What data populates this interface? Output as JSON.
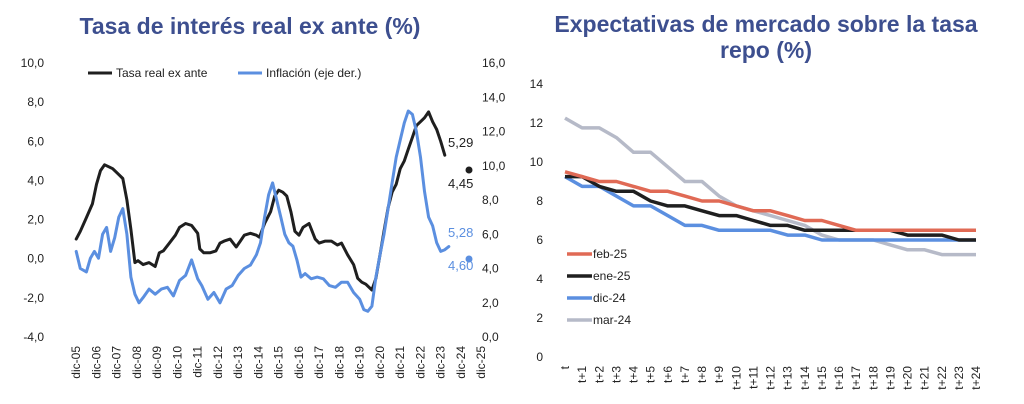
{
  "chart_data": [
    {
      "type": "line",
      "title": "Tasa de interés real ex ante (%)",
      "yticks_left": [
        "10,0",
        "8,0",
        "6,0",
        "4,0",
        "2,0",
        "0,0",
        "-2,0",
        "-4,0"
      ],
      "ylim_left": [
        -4,
        10
      ],
      "yticks_right": [
        "16,0",
        "14,0",
        "12,0",
        "10,0",
        "8,0",
        "6,0",
        "4,0",
        "2,0",
        "0,0"
      ],
      "ylim_right": [
        0,
        16
      ],
      "categories": [
        "dic-05",
        "dic-06",
        "dic-07",
        "dic-08",
        "dic-09",
        "dic-10",
        "dic-11",
        "dic-12",
        "dic-13",
        "dic-14",
        "dic-15",
        "dic-16",
        "dic-17",
        "dic-18",
        "dic-19",
        "dic-20",
        "dic-21",
        "dic-22",
        "dic-23",
        "dic-24",
        "dic-25"
      ],
      "legend_position": "top",
      "series": [
        {
          "name": "Tasa real ex ante",
          "axis": "left",
          "color": "#1f1f1f",
          "x": [
            2005.9,
            2006.1,
            2006.4,
            2006.7,
            2006.9,
            2007.1,
            2007.3,
            2007.5,
            2007.7,
            2008.0,
            2008.2,
            2008.4,
            2008.6,
            2008.8,
            2008.95,
            2009.2,
            2009.5,
            2009.8,
            2010.0,
            2010.2,
            2010.5,
            2010.8,
            2011.0,
            2011.3,
            2011.6,
            2011.9,
            2012.0,
            2012.2,
            2012.5,
            2012.8,
            2013.0,
            2013.2,
            2013.5,
            2013.8,
            2014.0,
            2014.2,
            2014.5,
            2014.8,
            2014.95,
            2015.2,
            2015.5,
            2015.7,
            2015.9,
            2016.1,
            2016.3,
            2016.5,
            2016.7,
            2016.9,
            2017.1,
            2017.4,
            2017.7,
            2017.9,
            2018.2,
            2018.5,
            2018.8,
            2019.0,
            2019.3,
            2019.6,
            2019.8,
            2020.0,
            2020.2,
            2020.5,
            2020.7,
            2020.9,
            2021.1,
            2021.3,
            2021.5,
            2021.7,
            2021.9,
            2022.1,
            2022.3,
            2022.5,
            2022.7,
            2022.9,
            2023.1,
            2023.3,
            2023.5,
            2023.7,
            2023.9,
            2024.1
          ],
          "values": [
            1.0,
            1.4,
            2.1,
            2.8,
            3.8,
            4.5,
            4.8,
            4.7,
            4.6,
            4.3,
            4.1,
            3.0,
            1.5,
            -0.2,
            -0.1,
            -0.3,
            -0.2,
            -0.4,
            0.3,
            0.4,
            0.8,
            1.2,
            1.6,
            1.8,
            1.7,
            1.3,
            0.5,
            0.3,
            0.3,
            0.4,
            0.8,
            0.9,
            1.0,
            0.6,
            0.9,
            1.2,
            1.3,
            1.2,
            1.1,
            1.8,
            2.4,
            3.2,
            3.5,
            3.4,
            3.2,
            2.4,
            1.4,
            1.2,
            1.6,
            1.8,
            1.0,
            0.8,
            0.9,
            0.9,
            0.7,
            0.8,
            0.2,
            -0.3,
            -1.0,
            -1.2,
            -1.3,
            -1.6,
            -1.0,
            0.2,
            1.4,
            2.6,
            3.4,
            3.8,
            4.6,
            5.0,
            5.6,
            6.2,
            6.8,
            7.0,
            7.2,
            7.5,
            7.0,
            6.6,
            6.0,
            5.29
          ]
        },
        {
          "name": "Inflación (eje der.)",
          "axis": "right",
          "color": "#5b8fe0",
          "x": [
            2005.9,
            2006.1,
            2006.4,
            2006.6,
            2006.8,
            2007.0,
            2007.2,
            2007.4,
            2007.6,
            2007.8,
            2008.0,
            2008.2,
            2008.4,
            2008.6,
            2008.8,
            2009.0,
            2009.2,
            2009.5,
            2009.8,
            2010.1,
            2010.4,
            2010.7,
            2011.0,
            2011.3,
            2011.6,
            2011.9,
            2012.1,
            2012.4,
            2012.7,
            2013.0,
            2013.3,
            2013.6,
            2013.9,
            2014.2,
            2014.5,
            2014.8,
            2015.0,
            2015.2,
            2015.4,
            2015.6,
            2015.8,
            2016.0,
            2016.2,
            2016.4,
            2016.6,
            2016.8,
            2017.0,
            2017.2,
            2017.5,
            2017.8,
            2018.1,
            2018.4,
            2018.7,
            2019.0,
            2019.3,
            2019.6,
            2019.9,
            2020.1,
            2020.3,
            2020.5,
            2020.7,
            2020.9,
            2021.1,
            2021.3,
            2021.5,
            2021.7,
            2021.9,
            2022.1,
            2022.3,
            2022.5,
            2022.7,
            2022.9,
            2023.1,
            2023.3,
            2023.5,
            2023.7,
            2023.9,
            2024.1,
            2024.3
          ],
          "values": [
            5.0,
            4.0,
            3.8,
            4.6,
            5.0,
            4.6,
            6.0,
            6.4,
            5.0,
            5.8,
            7.0,
            7.5,
            6.0,
            3.5,
            2.5,
            2.0,
            2.3,
            2.8,
            2.5,
            2.8,
            2.9,
            2.4,
            3.3,
            3.6,
            4.5,
            3.4,
            3.0,
            2.2,
            2.6,
            2.0,
            2.8,
            3.0,
            3.6,
            4.0,
            4.2,
            4.8,
            5.5,
            7.0,
            8.3,
            9.0,
            8.0,
            7.0,
            6.0,
            5.5,
            5.3,
            4.5,
            3.5,
            3.7,
            3.4,
            3.5,
            3.4,
            3.0,
            2.9,
            3.2,
            3.2,
            2.6,
            2.2,
            1.6,
            1.5,
            1.8,
            3.5,
            4.8,
            6.0,
            7.5,
            9.0,
            10.5,
            11.5,
            12.5,
            13.2,
            13.0,
            12.0,
            10.5,
            8.5,
            7.0,
            6.5,
            5.5,
            5.0,
            5.1,
            5.28
          ]
        }
      ],
      "annotations": [
        {
          "text": "5,29",
          "series": "Tasa real ex ante",
          "value": 5.29,
          "axis": "left"
        },
        {
          "text": "4,45",
          "marker": true,
          "color": "#1f1f1f",
          "value": 4.45,
          "axis": "left"
        },
        {
          "text": "5,28",
          "series": "Inflación (eje der.)",
          "value": 5.28,
          "axis": "right"
        },
        {
          "text": "4,60",
          "marker": true,
          "color": "#5b8fe0",
          "value": 4.6,
          "axis": "right"
        }
      ]
    },
    {
      "type": "line",
      "title": [
        "Expectativas de mercado sobre la tasa",
        "repo (%)"
      ],
      "yticks": [
        "14",
        "12",
        "10",
        "8",
        "6",
        "4",
        "2",
        "0"
      ],
      "ylim": [
        0,
        14
      ],
      "categories": [
        "t",
        "t+1",
        "t+2",
        "t+3",
        "t+4",
        "t+5",
        "t+6",
        "t+7",
        "t+8",
        "t+9",
        "t+10",
        "t+11",
        "t+12",
        "t+13",
        "t+14",
        "t+15",
        "t+16",
        "t+17",
        "t+18",
        "t+19",
        "t+20",
        "t+21",
        "t+22",
        "t+23",
        "t+24"
      ],
      "legend_position": "left",
      "series": [
        {
          "name": "feb-25",
          "color": "#e06a55",
          "values": [
            9.5,
            9.25,
            9.0,
            9.0,
            8.75,
            8.5,
            8.5,
            8.25,
            8.0,
            8.0,
            7.75,
            7.5,
            7.5,
            7.25,
            7.0,
            7.0,
            6.75,
            6.5,
            6.5,
            6.5,
            6.5,
            6.5,
            6.5,
            6.5,
            6.5
          ]
        },
        {
          "name": "ene-25",
          "color": "#1f1f1f",
          "values": [
            9.25,
            9.25,
            8.75,
            8.5,
            8.5,
            8.0,
            7.75,
            7.75,
            7.5,
            7.25,
            7.25,
            7.0,
            6.75,
            6.75,
            6.5,
            6.5,
            6.5,
            6.5,
            6.5,
            6.5,
            6.25,
            6.25,
            6.25,
            6.0,
            6.0
          ]
        },
        {
          "name": "dic-24",
          "color": "#5b8fe0",
          "values": [
            9.25,
            8.75,
            8.75,
            8.25,
            7.75,
            7.75,
            7.25,
            6.75,
            6.75,
            6.5,
            6.5,
            6.5,
            6.5,
            6.25,
            6.25,
            6.0,
            6.0,
            6.0,
            6.0,
            6.0,
            6.0,
            6.0,
            6.0,
            6.0,
            6.0
          ]
        },
        {
          "name": "mar-24",
          "color": "#b6bac8",
          "values": [
            12.25,
            11.75,
            11.75,
            11.25,
            10.5,
            10.5,
            9.75,
            9.0,
            9.0,
            8.25,
            7.75,
            7.5,
            7.25,
            7.0,
            6.75,
            6.25,
            6.0,
            6.0,
            6.0,
            5.75,
            5.5,
            5.5,
            5.25,
            5.25,
            5.25
          ]
        }
      ]
    }
  ]
}
